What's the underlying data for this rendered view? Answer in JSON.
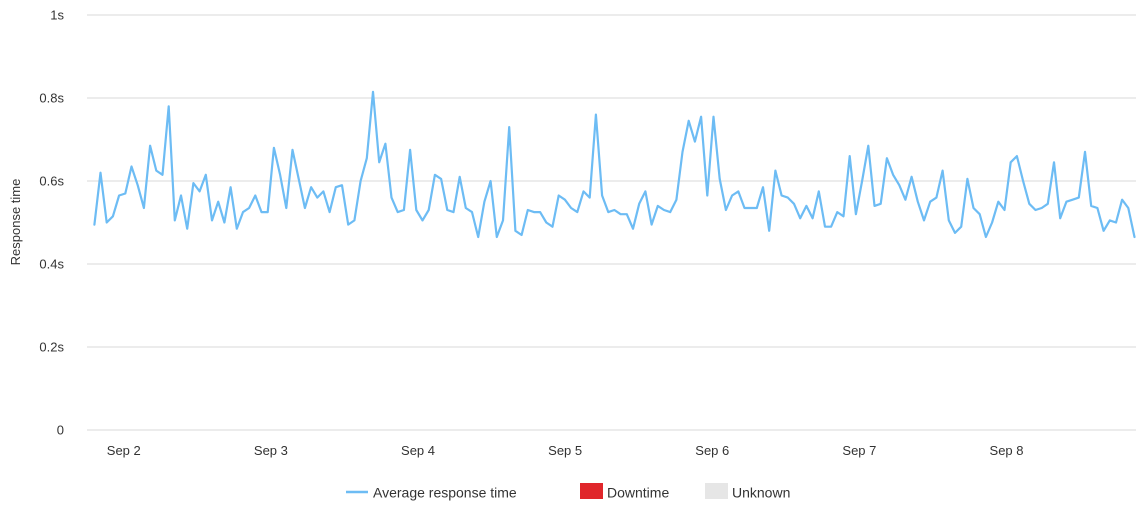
{
  "chart_data": {
    "type": "line",
    "ylabel": "Response time",
    "ylim": [
      0,
      1
    ],
    "y_ticks": [
      {
        "value": 0,
        "label": "0"
      },
      {
        "value": 0.2,
        "label": "0.2s"
      },
      {
        "value": 0.4,
        "label": "0.4s"
      },
      {
        "value": 0.6,
        "label": "0.6s"
      },
      {
        "value": 0.8,
        "label": "0.8s"
      },
      {
        "value": 1,
        "label": "1s"
      }
    ],
    "x_ticks": [
      {
        "day": 2,
        "label": "Sep 2"
      },
      {
        "day": 3,
        "label": "Sep 3"
      },
      {
        "day": 4,
        "label": "Sep 4"
      },
      {
        "day": 5,
        "label": "Sep 5"
      },
      {
        "day": 6,
        "label": "Sep 6"
      },
      {
        "day": 7,
        "label": "Sep 7"
      },
      {
        "day": 8,
        "label": "Sep 8"
      }
    ],
    "xlim_days": [
      1.75,
      8.88
    ],
    "grid": true,
    "legend": "bottom-center",
    "legend_items": [
      {
        "label": "Average response time",
        "marker": "line",
        "color": "#6dbcf4"
      },
      {
        "label": "Downtime",
        "marker": "box",
        "color": "#e0262b"
      },
      {
        "label": "Unknown",
        "marker": "box",
        "color": "#e6e6e6"
      }
    ],
    "series": [
      {
        "name": "Average response time",
        "color": "#6dbcf4",
        "x_start_day": 1.8,
        "x_end_day": 8.87,
        "values": [
          0.495,
          0.62,
          0.5,
          0.515,
          0.565,
          0.57,
          0.635,
          0.59,
          0.535,
          0.685,
          0.625,
          0.615,
          0.78,
          0.505,
          0.565,
          0.485,
          0.595,
          0.575,
          0.615,
          0.505,
          0.55,
          0.5,
          0.585,
          0.485,
          0.525,
          0.535,
          0.565,
          0.525,
          0.525,
          0.68,
          0.615,
          0.535,
          0.675,
          0.605,
          0.535,
          0.585,
          0.56,
          0.575,
          0.525,
          0.585,
          0.59,
          0.495,
          0.505,
          0.6,
          0.655,
          0.815,
          0.645,
          0.69,
          0.56,
          0.525,
          0.53,
          0.675,
          0.53,
          0.505,
          0.53,
          0.615,
          0.605,
          0.53,
          0.525,
          0.61,
          0.535,
          0.525,
          0.465,
          0.55,
          0.6,
          0.465,
          0.505,
          0.73,
          0.48,
          0.47,
          0.53,
          0.525,
          0.525,
          0.5,
          0.49,
          0.565,
          0.555,
          0.535,
          0.525,
          0.575,
          0.56,
          0.76,
          0.565,
          0.525,
          0.53,
          0.52,
          0.52,
          0.485,
          0.545,
          0.575,
          0.495,
          0.54,
          0.53,
          0.525,
          0.555,
          0.67,
          0.745,
          0.695,
          0.755,
          0.565,
          0.755,
          0.605,
          0.53,
          0.565,
          0.575,
          0.535,
          0.535,
          0.535,
          0.585,
          0.48,
          0.625,
          0.565,
          0.56,
          0.545,
          0.51,
          0.54,
          0.51,
          0.575,
          0.49,
          0.49,
          0.525,
          0.515,
          0.66,
          0.52,
          0.6,
          0.685,
          0.54,
          0.545,
          0.655,
          0.615,
          0.59,
          0.555,
          0.61,
          0.55,
          0.505,
          0.55,
          0.56,
          0.625,
          0.505,
          0.475,
          0.49,
          0.605,
          0.535,
          0.52,
          0.465,
          0.5,
          0.55,
          0.53,
          0.645,
          0.66,
          0.6,
          0.545,
          0.53,
          0.535,
          0.545,
          0.645,
          0.51,
          0.55,
          0.555,
          0.56,
          0.67,
          0.54,
          0.535,
          0.48,
          0.505,
          0.5,
          0.555,
          0.535,
          0.465
        ]
      }
    ]
  }
}
